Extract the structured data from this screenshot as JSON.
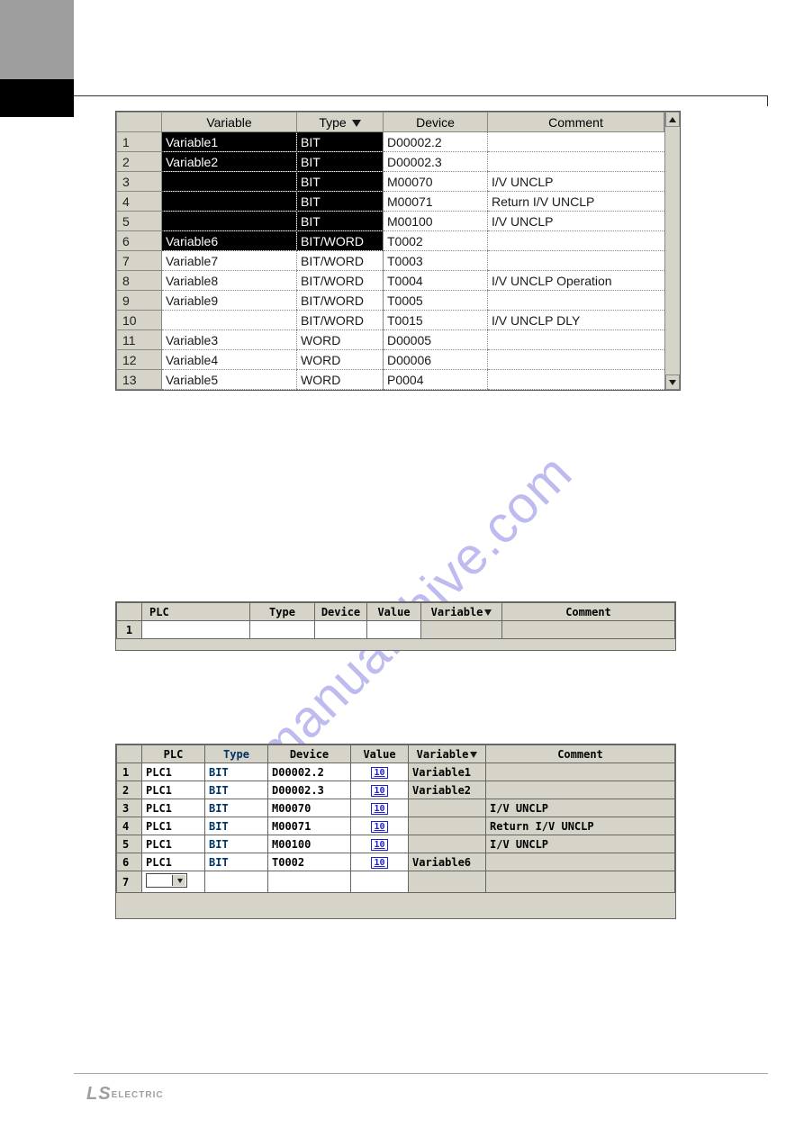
{
  "watermark": "manualshive.com",
  "logo_ls": "LS",
  "logo_rest": "ELECTRIC",
  "table1": {
    "headers": {
      "variable": "Variable",
      "type": "Type",
      "device": "Device",
      "comment": "Comment"
    },
    "rows": [
      {
        "n": "1",
        "var": "Variable1",
        "type": "BIT",
        "dev": "D00002.2",
        "com": "",
        "sel": true
      },
      {
        "n": "2",
        "var": "Variable2",
        "type": "BIT",
        "dev": "D00002.3",
        "com": "",
        "sel": true
      },
      {
        "n": "3",
        "var": "",
        "type": "BIT",
        "dev": "M00070",
        "com": "I/V UNCLP",
        "sel": true
      },
      {
        "n": "4",
        "var": "",
        "type": "BIT",
        "dev": "M00071",
        "com": "Return I/V UNCLP",
        "sel": true
      },
      {
        "n": "5",
        "var": "",
        "type": "BIT",
        "dev": "M00100",
        "com": "I/V UNCLP",
        "sel": true
      },
      {
        "n": "6",
        "var": "Variable6",
        "type": "BIT/WORD",
        "dev": "T0002",
        "com": "",
        "sel": true
      },
      {
        "n": "7",
        "var": "Variable7",
        "type": "BIT/WORD",
        "dev": "T0003",
        "com": "",
        "sel": false
      },
      {
        "n": "8",
        "var": "Variable8",
        "type": "BIT/WORD",
        "dev": "T0004",
        "com": "I/V UNCLP Operation",
        "sel": false
      },
      {
        "n": "9",
        "var": "Variable9",
        "type": "BIT/WORD",
        "dev": "T0005",
        "com": "",
        "sel": false
      },
      {
        "n": "10",
        "var": "",
        "type": "BIT/WORD",
        "dev": "T0015",
        "com": "I/V UNCLP DLY",
        "sel": false
      },
      {
        "n": "11",
        "var": "Variable3",
        "type": "WORD",
        "dev": "D00005",
        "com": "",
        "sel": false
      },
      {
        "n": "12",
        "var": "Variable4",
        "type": "WORD",
        "dev": "D00006",
        "com": "",
        "sel": false
      },
      {
        "n": "13",
        "var": "Variable5",
        "type": "WORD",
        "dev": "P0004",
        "com": "",
        "sel": false
      }
    ]
  },
  "table2": {
    "headers": {
      "plc": "PLC",
      "type": "Type",
      "device": "Device",
      "value": "Value",
      "variable": "Variable",
      "comment": "Comment"
    },
    "rownum": "1"
  },
  "table3": {
    "headers": {
      "plc": "PLC",
      "type": "Type",
      "device": "Device",
      "value": "Value",
      "variable": "Variable",
      "comment": "Comment"
    },
    "value_glyph": "10",
    "rows": [
      {
        "n": "1",
        "plc": "PLC1",
        "type": "BIT",
        "dev": "D00002.2",
        "var": "Variable1",
        "com": ""
      },
      {
        "n": "2",
        "plc": "PLC1",
        "type": "BIT",
        "dev": "D00002.3",
        "var": "Variable2",
        "com": ""
      },
      {
        "n": "3",
        "plc": "PLC1",
        "type": "BIT",
        "dev": "M00070",
        "var": "",
        "com": "I/V UNCLP"
      },
      {
        "n": "4",
        "plc": "PLC1",
        "type": "BIT",
        "dev": "M00071",
        "var": "",
        "com": "Return I/V UNCLP"
      },
      {
        "n": "5",
        "plc": "PLC1",
        "type": "BIT",
        "dev": "M00100",
        "var": "",
        "com": "I/V UNCLP"
      },
      {
        "n": "6",
        "plc": "PLC1",
        "type": "BIT",
        "dev": "T0002",
        "var": "Variable6",
        "com": ""
      }
    ],
    "emptyrow": "7"
  }
}
